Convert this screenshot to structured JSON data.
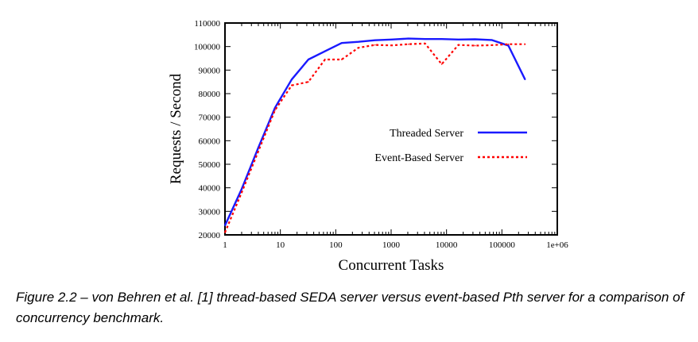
{
  "chart_data": {
    "type": "line",
    "xlabel": "Concurrent Tasks",
    "ylabel": "Requests / Second",
    "xscale": "log",
    "xlim": [
      1,
      1000000
    ],
    "ylim": [
      20000,
      110000
    ],
    "xticks": [
      1,
      10,
      100,
      1000,
      10000,
      100000,
      1000000
    ],
    "xtick_labels": [
      "1",
      "10",
      "100",
      "1000",
      "10000",
      "100000",
      "1e+06"
    ],
    "yticks": [
      20000,
      30000,
      40000,
      50000,
      60000,
      70000,
      80000,
      90000,
      100000,
      110000
    ],
    "ytick_labels": [
      "20000",
      "30000",
      "40000",
      "50000",
      "60000",
      "70000",
      "80000",
      "90000",
      "100000",
      "110000"
    ],
    "grid": false,
    "legend_position": "right-middle",
    "series": [
      {
        "name": "Threaded Server",
        "color": "#1a1aff",
        "style": "solid",
        "x": [
          1,
          2,
          4,
          8,
          16,
          32,
          64,
          128,
          256,
          512,
          1024,
          2048,
          4096,
          8192,
          16384,
          32768,
          65536,
          131072,
          262144
        ],
        "y": [
          24000,
          39500,
          57000,
          74000,
          86000,
          94500,
          98000,
          101500,
          102000,
          102700,
          103000,
          103400,
          103200,
          103200,
          103000,
          103100,
          102800,
          100400,
          86000
        ]
      },
      {
        "name": "Event-Based Server",
        "color": "#ff0000",
        "style": "dotted",
        "x": [
          1,
          2,
          4,
          8,
          16,
          32,
          64,
          128,
          256,
          512,
          1024,
          2048,
          4096,
          8192,
          16384,
          32768,
          65536,
          131072,
          262144
        ],
        "y": [
          21000,
          38000,
          55500,
          73000,
          83500,
          85000,
          94500,
          94500,
          99500,
          100700,
          100500,
          101000,
          101300,
          92500,
          100700,
          100400,
          100600,
          101000,
          101000
        ]
      }
    ]
  },
  "caption": "Figure 2.2 – von Behren et al. [1] thread-based SEDA server versus event-based Pth server for a comparison of concurrency benchmark."
}
